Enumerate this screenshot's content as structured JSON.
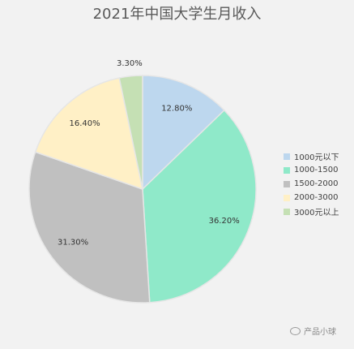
{
  "chart_data": {
    "type": "pie",
    "title": "2021年中国大学生月收入",
    "categories": [
      "1000元以下",
      "1000-1500",
      "1500-2000",
      "2000-3000",
      "3000元以上"
    ],
    "values": [
      12.8,
      36.2,
      31.3,
      16.4,
      3.3
    ],
    "data_labels": [
      "12.80%",
      "36.20%",
      "31.30%",
      "16.40%",
      "3.30%"
    ],
    "colors": [
      "#bdd7ee",
      "#8fe9c9",
      "#c0c0c0",
      "#fff0c6",
      "#c5e0b4"
    ],
    "start_angle": "12 o'clock",
    "direction": "clockwise",
    "legend": "right"
  },
  "watermark": {
    "text": "产品小球"
  }
}
